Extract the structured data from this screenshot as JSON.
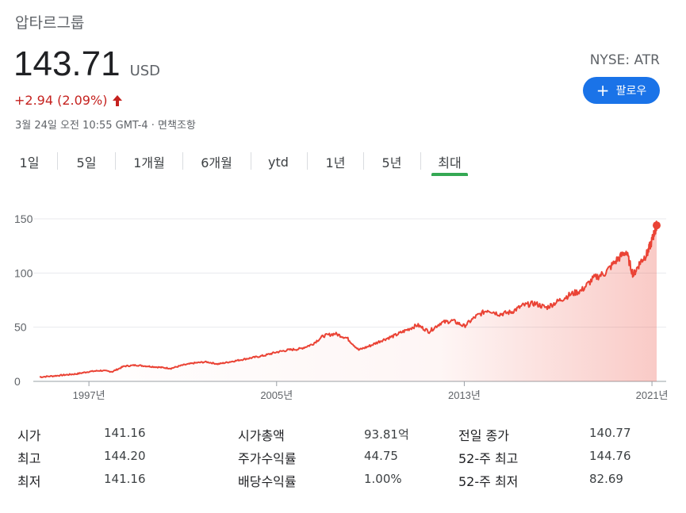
{
  "header": {
    "company": "압타르그룹",
    "price": "143.71",
    "currency": "USD",
    "change": "+2.94 (2.09%)",
    "timestamp": "3월 24일 오전 10:55 GMT-4 · 면책조항",
    "exchange": "NYSE: ATR",
    "follow_label": "팔로우"
  },
  "tabs": [
    "1일",
    "5일",
    "1개월",
    "6개월",
    "ytd",
    "1년",
    "5년",
    "최대"
  ],
  "active_tab": "최대",
  "colors": {
    "line": "#ea4335",
    "follow": "#1a73e8",
    "active_tab": "#34a853",
    "negative_text": "#c5221f"
  },
  "chart_data": {
    "type": "area",
    "y_ticks": [
      "150",
      "100",
      "50",
      "0"
    ],
    "x_ticks": [
      "1997년",
      "2005년",
      "2013년",
      "2021년"
    ],
    "ylim": [
      0,
      150
    ],
    "x": [
      1994.9,
      1995.5,
      1996,
      1996.5,
      1997,
      1997.5,
      1998,
      1998.5,
      1999,
      1999.5,
      2000,
      2000.5,
      2001,
      2001.5,
      2002,
      2002.5,
      2003,
      2003.5,
      2004,
      2004.5,
      2005,
      2005.5,
      2006,
      2006.5,
      2007,
      2007.5,
      2008,
      2008.5,
      2009,
      2009.5,
      2010,
      2010.5,
      2011,
      2011.5,
      2012,
      2012.5,
      2013,
      2013.5,
      2014,
      2014.5,
      2015,
      2015.5,
      2016,
      2016.5,
      2017,
      2017.5,
      2018,
      2018.5,
      2019,
      2019.5,
      2019.9,
      2020.2,
      2020.5,
      2020.8,
      2021.0,
      2021.15,
      2021.2
    ],
    "values": [
      4,
      5,
      6,
      7,
      9,
      10,
      9,
      14,
      15,
      14,
      13,
      12,
      15,
      17,
      18,
      16,
      18,
      20,
      22,
      24,
      27,
      29,
      30,
      34,
      42,
      44,
      40,
      29,
      33,
      38,
      42,
      47,
      52,
      46,
      54,
      56,
      51,
      60,
      66,
      62,
      64,
      70,
      72,
      68,
      74,
      80,
      84,
      95,
      100,
      112,
      120,
      98,
      110,
      118,
      130,
      141,
      144
    ]
  },
  "stats": [
    [
      {
        "label": "시가",
        "value": "141.16"
      },
      {
        "label": "최고",
        "value": "144.20"
      },
      {
        "label": "최저",
        "value": "141.16"
      }
    ],
    [
      {
        "label": "시가총액",
        "value": "93.81억"
      },
      {
        "label": "주가수익률",
        "value": "44.75"
      },
      {
        "label": "배당수익률",
        "value": "1.00%"
      }
    ],
    [
      {
        "label": "전일 종가",
        "value": "140.77"
      },
      {
        "label": "52-주 최고",
        "value": "144.76"
      },
      {
        "label": "52-주 최저",
        "value": "82.69"
      }
    ]
  ]
}
